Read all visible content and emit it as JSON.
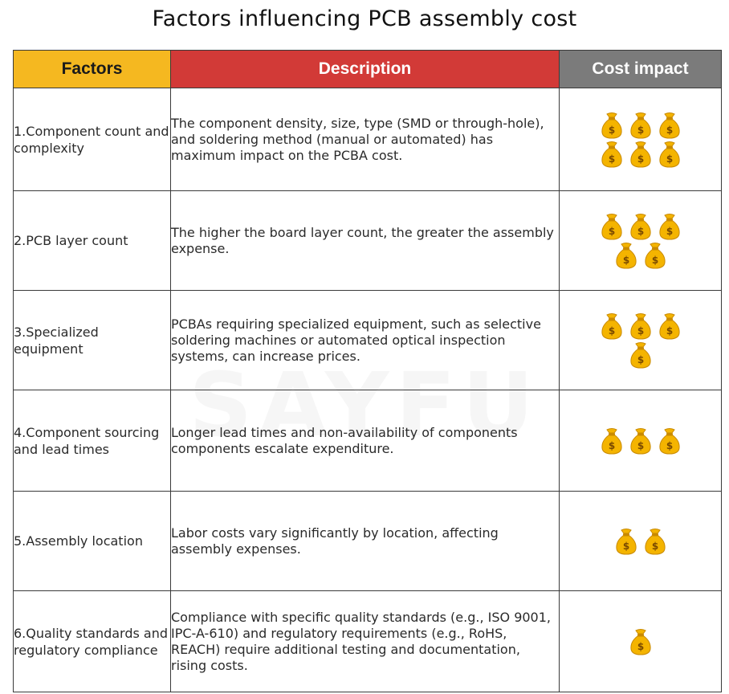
{
  "title": "Factors influencing PCB assembly cost",
  "watermark": "SAYFU",
  "headers": {
    "factors": "Factors",
    "description": "Description",
    "cost_impact": "Cost impact"
  },
  "colors": {
    "factors_header": "#f5b820",
    "description_header": "#d23a37",
    "cost_header": "#7b7b7b",
    "bag_fill": "#f4b400"
  },
  "icon": "money-bag-icon",
  "rows": [
    {
      "factor": "1.Component count and complexity",
      "description": "The component density, size, type (SMD or through-hole), and soldering method (manual or automated) has maximum impact on the PCBA cost.",
      "cost_bags": 6
    },
    {
      "factor": "2.PCB layer count",
      "description": "The higher the board layer count, the greater the assembly expense.",
      "cost_bags": 5
    },
    {
      "factor": "3.Specialized equipment",
      "description": "PCBAs requiring specialized equipment, such as selective soldering machines or automated optical inspection systems, can increase prices.",
      "cost_bags": 4
    },
    {
      "factor": "4.Component sourcing and lead times",
      "description": "Longer lead times and non-availability of components components escalate expenditure.",
      "cost_bags": 3
    },
    {
      "factor": "5.Assembly location",
      "description": "Labor costs vary significantly by location, affecting assembly expenses.",
      "cost_bags": 2
    },
    {
      "factor": "6.Quality standards and regulatory compliance",
      "description": "Compliance with specific quality standards (e.g., ISO 9001, IPC-A-610) and regulatory requirements (e.g., RoHS, REACH) require additional testing and documentation, rising costs.",
      "cost_bags": 1
    }
  ]
}
